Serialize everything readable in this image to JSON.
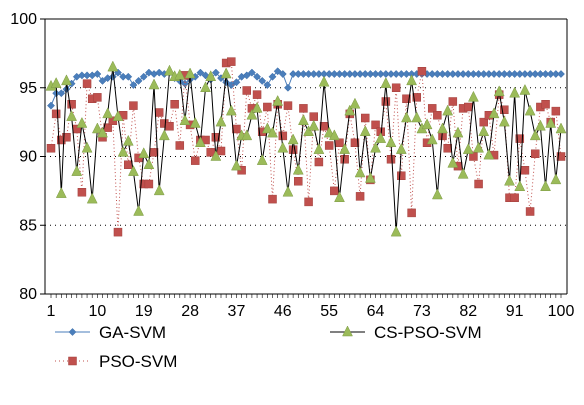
{
  "chart_data": {
    "type": "line",
    "xlabel": "",
    "ylabel": "",
    "xlim": [
      1,
      100
    ],
    "ylim": [
      80,
      100
    ],
    "x_ticks": [
      1,
      10,
      19,
      28,
      37,
      46,
      55,
      64,
      73,
      82,
      91,
      100
    ],
    "y_ticks": [
      80,
      85,
      90,
      95,
      100
    ],
    "grid": "horizontal dotted at 85, 90, 95",
    "legend_position": "bottom",
    "series": [
      {
        "name": "GA-SVM",
        "color": "#4a7ebb",
        "marker": "diamond",
        "line": "solid",
        "values": [
          93.7,
          94.6,
          94.6,
          94.9,
          95.3,
          95.8,
          95.9,
          95.9,
          95.9,
          96.0,
          95.5,
          95.7,
          95.8,
          96.1,
          95.8,
          95.8,
          95.2,
          95.5,
          95.8,
          96.1,
          96.0,
          96.1,
          96.0,
          96.1,
          95.7,
          95.5,
          95.3,
          95.6,
          95.8,
          96.1,
          95.9,
          95.6,
          96.1,
          95.7,
          95.4,
          95.2,
          95.4,
          95.8,
          95.9,
          96.1,
          95.8,
          95.5,
          95.2,
          95.8,
          96.2,
          96.0,
          95.0,
          96.0,
          96.0,
          96.0,
          96.0,
          96.0,
          96.0,
          96.0,
          96.0,
          96.0,
          96.0,
          96.0,
          96.0,
          96.0,
          96.0,
          96.0,
          96.0,
          96.0,
          96.0,
          96.0,
          96.0,
          96.0,
          96.0,
          96.0,
          96.0,
          96.0,
          96.0,
          96.0,
          96.0,
          96.0,
          96.0,
          96.0,
          96.0,
          96.0,
          96.0,
          96.0,
          96.0,
          96.0,
          96.0,
          96.0,
          96.0,
          96.0,
          96.0,
          96.0,
          96.0,
          96.0,
          96.0,
          96.0,
          96.0,
          96.0,
          96.0,
          96.0,
          96.0,
          96.0
        ]
      },
      {
        "name": "PSO-SVM",
        "color": "#c0504d",
        "marker": "square",
        "line": "dotted",
        "values": [
          90.6,
          93.1,
          91.2,
          91.4,
          93.8,
          92.0,
          87.4,
          95.3,
          94.2,
          94.3,
          91.4,
          92.1,
          92.6,
          84.5,
          93.0,
          89.4,
          93.7,
          89.9,
          88.0,
          88.0,
          90.3,
          93.2,
          92.4,
          92.2,
          93.8,
          90.8,
          95.9,
          92.3,
          89.7,
          91.2,
          91.2,
          90.3,
          91.4,
          90.4,
          96.8,
          96.9,
          92.0,
          89.0,
          94.8,
          93.5,
          94.5,
          91.8,
          93.6,
          86.9,
          93.8,
          91.5,
          93.7,
          90.5,
          88.2,
          93.5,
          86.7,
          92.9,
          89.6,
          92.2,
          90.8,
          87.5,
          91.0,
          89.8,
          93.1,
          91.0,
          87.1,
          92.8,
          88.3,
          92.3,
          91.8,
          94.0,
          89.8,
          95.0,
          88.6,
          94.2,
          85.9,
          94.3,
          96.2,
          91.0,
          93.5,
          93.0,
          91.5,
          90.6,
          94.0,
          89.3,
          93.5,
          93.6,
          90.0,
          88.0,
          92.5,
          93.0,
          90.1,
          94.5,
          93.4,
          87.0,
          87.0,
          91.3,
          89.0,
          86.0,
          90.2,
          93.6,
          93.8,
          92.5,
          93.3,
          90.0
        ]
      },
      {
        "name": "CS-PSO-SVM",
        "color": "#9bbb59",
        "marker": "triangle",
        "line": "solid",
        "values": [
          95.1,
          95.3,
          87.3,
          95.5,
          92.9,
          88.9,
          92.4,
          90.6,
          86.9,
          92.0,
          91.7,
          93.1,
          96.5,
          92.9,
          90.3,
          91.1,
          88.9,
          86.0,
          90.2,
          89.4,
          95.2,
          87.5,
          91.5,
          96.2,
          95.8,
          95.9,
          92.6,
          96.0,
          92.4,
          91.0,
          95.0,
          95.8,
          90.0,
          92.5,
          96.0,
          93.3,
          89.3,
          91.5,
          91.5,
          93.0,
          93.5,
          89.7,
          92.0,
          91.7,
          94.0,
          90.6,
          87.4,
          91.2,
          89.0,
          92.6,
          91.8,
          92.2,
          90.5,
          95.4,
          91.7,
          91.5,
          87.0,
          90.5,
          93.3,
          93.8,
          88.8,
          91.8,
          88.4,
          90.6,
          91.3,
          95.3,
          91.0,
          84.5,
          90.5,
          92.8,
          95.5,
          92.8,
          92.0,
          92.3,
          91.2,
          87.2,
          92.0,
          93.3,
          89.5,
          91.7,
          88.7,
          90.5,
          94.3,
          90.6,
          91.8,
          90.1,
          93.1,
          94.7,
          92.5,
          88.2,
          94.6,
          87.8,
          94.8,
          93.3,
          91.5,
          92.2,
          87.8,
          92.4,
          88.3,
          92.0
        ]
      }
    ]
  }
}
